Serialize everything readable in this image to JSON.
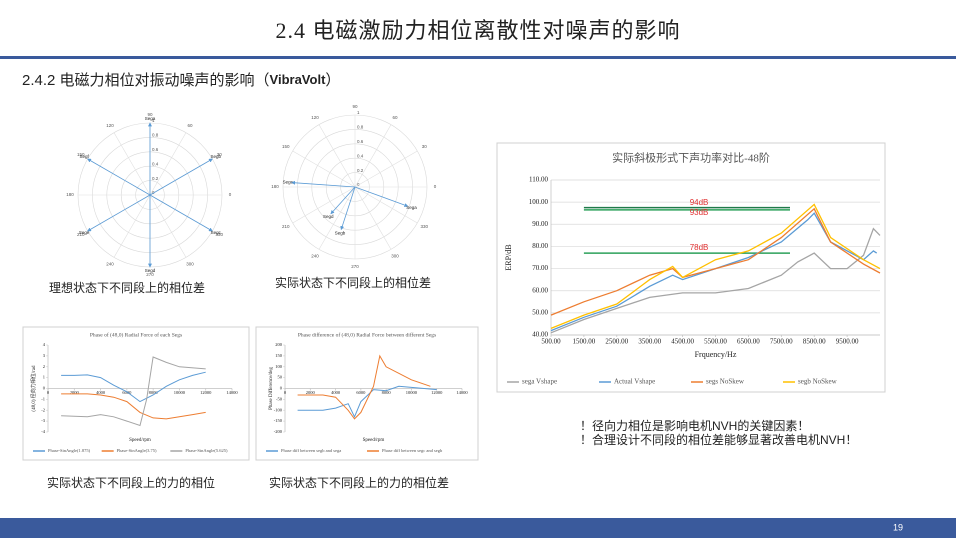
{
  "header": {
    "title": "2.4  电磁激励力相位离散性对噪声的影响"
  },
  "subtitle": [
    "2.4.2 电磁力相位对振动噪声的影响（",
    "VibraVolt",
    "）"
  ],
  "polar": [
    {
      "caption": "理想状态下不同段上的相位差",
      "angle_ticks": [
        0,
        30,
        60,
        90,
        120,
        150,
        180,
        210,
        240,
        270,
        300,
        330
      ],
      "radial_ticks": [
        0,
        0.2,
        0.4,
        0.6,
        0.8,
        1
      ],
      "vectors": [
        {
          "label": "Sega",
          "angle": 90,
          "magnitude": 1
        },
        {
          "label": "Segb",
          "angle": 30,
          "magnitude": 1
        },
        {
          "label": "Segc",
          "angle": 330,
          "magnitude": 1
        },
        {
          "label": "Segd",
          "angle": 270,
          "magnitude": 1
        },
        {
          "label": "Sege",
          "angle": 210,
          "magnitude": 1
        },
        {
          "label": "Segf",
          "angle": 150,
          "magnitude": 1
        }
      ]
    },
    {
      "caption": "实际状态下不同段上的相位差",
      "angle_ticks": [
        0,
        30,
        60,
        90,
        120,
        150,
        180,
        210,
        240,
        270,
        300,
        330
      ],
      "radial_ticks": [
        0,
        0.2,
        0.4,
        0.6,
        0.8,
        1
      ],
      "vectors": [
        {
          "label": "Sega",
          "angle": 340,
          "magnitude": 0.78
        },
        {
          "label": "Segb",
          "angle": 252,
          "magnitude": 0.62
        },
        {
          "label": "Segc",
          "angle": 176,
          "magnitude": 0.88
        },
        {
          "label": "Segd",
          "angle": 228,
          "magnitude": 0.5
        }
      ]
    }
  ],
  "line_charts": [
    {
      "type": "line",
      "caption": "实际状态下不同段上的力的相位",
      "title": "Phase of (48,0) Radial Force of each Segs",
      "xlabel": "Speed/rpm",
      "ylabel": "(48,0) 径向力相位/rad",
      "xlim": [
        0,
        14000
      ],
      "xticks": [
        0,
        2000,
        4000,
        6000,
        8000,
        10000,
        12000,
        14000
      ],
      "ylim": [
        -4,
        4
      ],
      "yticks": [
        -4,
        -3,
        -2,
        -1,
        0,
        1,
        2,
        3,
        4
      ],
      "grid": false,
      "x_axis_at_zero": true,
      "legend": "bottom",
      "series": [
        {
          "name": "Phase-SinAngle(1.875)",
          "color": "#5b9bd5",
          "x": [
            1000,
            2000,
            3000,
            4000,
            5000,
            6000,
            7000,
            8000,
            9000,
            10000,
            11000,
            12000
          ],
          "values": [
            1.2,
            1.2,
            1.25,
            1.0,
            0.3,
            -0.3,
            -1.2,
            -0.6,
            0.2,
            0.8,
            1.2,
            1.5
          ]
        },
        {
          "name": "Phase-SinAngle(3.75)",
          "color": "#ed7d31",
          "x": [
            1000,
            3000,
            4000,
            5000,
            6000,
            7000,
            8000,
            9000,
            10000,
            11000,
            12000
          ],
          "values": [
            -0.5,
            -0.5,
            -0.6,
            -0.8,
            -1.2,
            -2.2,
            -2.7,
            -2.8,
            -2.6,
            -2.4,
            -2.2
          ]
        },
        {
          "name": "Phase-SinAngle(5.625)",
          "color": "#a5a5a5",
          "x": [
            1000,
            3000,
            4000,
            5000,
            6000,
            7000,
            7500,
            8000,
            9000,
            10000,
            12000
          ],
          "values": [
            -2.5,
            -2.6,
            -2.4,
            -2.6,
            -3.0,
            -3.4,
            -1,
            2.9,
            2.4,
            2.0,
            1.8
          ]
        }
      ]
    },
    {
      "type": "line",
      "caption": "实际状态下不同段上的力的相位差",
      "title": "Phase difference of (48,0) Radial Force between different Segs",
      "xlabel": "Speed/rpm",
      "ylabel": "Phase Difference/deg",
      "xlim": [
        0,
        14000
      ],
      "xticks": [
        0,
        2000,
        4000,
        6000,
        8000,
        10000,
        12000,
        14000
      ],
      "ylim": [
        -200,
        200
      ],
      "yticks": [
        -200,
        -150,
        -100,
        -50,
        0,
        50,
        100,
        150,
        200
      ],
      "grid": false,
      "x_axis_at_zero": true,
      "legend": "bottom",
      "series": [
        {
          "name": "Phase diff between segb and sega",
          "color": "#5b9bd5",
          "x": [
            1000,
            3000,
            4000,
            5000,
            5500,
            6000,
            7000,
            8000,
            9000,
            10000,
            12000
          ],
          "values": [
            -100,
            -100,
            -90,
            -70,
            -130,
            -60,
            -5,
            -10,
            10,
            5,
            -5
          ]
        },
        {
          "name": "Phase diff between segc and segb",
          "color": "#ed7d31",
          "x": [
            1000,
            3000,
            4000,
            5000,
            5500,
            6000,
            7000,
            7500,
            8000,
            9000,
            10000,
            11500
          ],
          "values": [
            -30,
            -30,
            -40,
            -100,
            -140,
            -110,
            10,
            150,
            100,
            70,
            40,
            10
          ]
        }
      ]
    },
    {
      "type": "line",
      "title": "实际斜极形式下声功率对比-48阶",
      "xlabel": "Frquency/Hz",
      "ylabel": "ERP/dB",
      "xlim": [
        500,
        10500
      ],
      "xticks": [
        {
          "value": 500,
          "label": "500.00"
        },
        {
          "value": 1500,
          "label": "1500.00"
        },
        {
          "value": 2500,
          "label": "2500.00"
        },
        {
          "value": 3500,
          "label": "3500.00"
        },
        {
          "value": 4500,
          "label": "4500.00"
        },
        {
          "value": 5500,
          "label": "5500.00"
        },
        {
          "value": 6500,
          "label": "6500.00"
        },
        {
          "value": 7500,
          "label": "7500.00"
        },
        {
          "value": 8500,
          "label": "8500.00"
        },
        {
          "value": 9500,
          "label": "9500.00"
        }
      ],
      "ylim": [
        40,
        110
      ],
      "yticks": [
        {
          "value": 40,
          "label": "40.00"
        },
        {
          "value": 50,
          "label": "50.00"
        },
        {
          "value": 60,
          "label": "60.00"
        },
        {
          "value": 70,
          "label": "70.00"
        },
        {
          "value": 80,
          "label": "80.00"
        },
        {
          "value": 90,
          "label": "90.00"
        },
        {
          "value": 100,
          "label": "100.00"
        },
        {
          "value": 110,
          "label": "110.00"
        }
      ],
      "grid": true,
      "x_axis_at_zero": false,
      "legend": "bottom",
      "annotations": [
        {
          "text": "94dB",
          "y": 97.5,
          "color": "#1f7a4a"
        },
        {
          "text": "93dB",
          "y": 96.5,
          "color": "#2ca05a"
        },
        {
          "text": "78dB",
          "y": 77,
          "color": "#2ca05a"
        }
      ],
      "series": [
        {
          "name": "sega Vshape",
          "color": "#a5a5a5",
          "x": [
            500,
            1500,
            2500,
            3500,
            4500,
            5500,
            6500,
            7500,
            8000,
            8500,
            9000,
            9500,
            10000,
            10300,
            10500
          ],
          "values": [
            41,
            47,
            52,
            57,
            59,
            59,
            61,
            67,
            73,
            77,
            70,
            70,
            76,
            88,
            85
          ]
        },
        {
          "name": "Actual Vshape",
          "color": "#5b9bd5",
          "x": [
            500,
            1500,
            2500,
            3500,
            4200,
            4500,
            5500,
            6500,
            7500,
            8300,
            8500,
            9000,
            10000,
            10300,
            10400
          ],
          "values": [
            42,
            48,
            53,
            62,
            67,
            65,
            70,
            75,
            82,
            92,
            95,
            82,
            74,
            78,
            77
          ]
        },
        {
          "name": "segs NoSkew",
          "color": "#ed7d31",
          "x": [
            500,
            1500,
            2500,
            3500,
            4200,
            4500,
            5500,
            6500,
            7500,
            8500,
            9000,
            10000,
            10500
          ],
          "values": [
            49,
            55,
            60,
            67,
            70,
            66,
            70,
            74,
            84,
            97,
            82,
            72,
            68
          ]
        },
        {
          "name": "segb NoSkew",
          "color": "#ffc000",
          "x": [
            500,
            1500,
            2500,
            3500,
            4200,
            4500,
            5500,
            6500,
            7500,
            8500,
            9000,
            10000,
            10500
          ],
          "values": [
            43,
            49,
            54,
            65,
            71,
            66,
            74,
            78,
            86,
            99,
            84,
            74,
            70
          ]
        }
      ]
    }
  ],
  "notes": [
    "！径向力相位是影响电机NVH的关键因素！",
    "！合理设计不同段的相位差能够显著改善电机NVH！"
  ],
  "page_number": "19"
}
